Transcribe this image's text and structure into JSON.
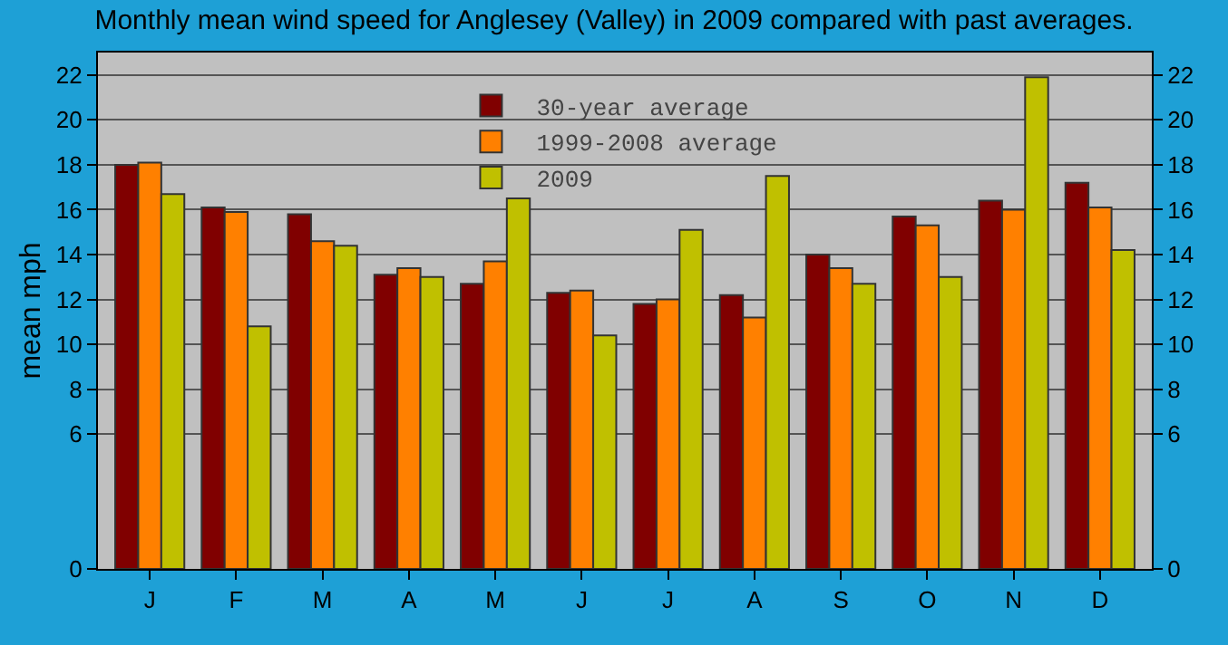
{
  "chart_data": {
    "type": "bar",
    "title": "Monthly mean wind speed for Anglesey (Valley) in 2009 compared with past averages.",
    "ylabel": "mean mph",
    "categories": [
      "J",
      "F",
      "M",
      "A",
      "M",
      "J",
      "J",
      "A",
      "S",
      "O",
      "N",
      "D"
    ],
    "series": [
      {
        "name": "30-year average",
        "color": "#800000",
        "values": [
          18.0,
          16.1,
          15.8,
          13.1,
          12.7,
          12.3,
          11.8,
          12.2,
          14.0,
          15.7,
          16.4,
          17.2
        ]
      },
      {
        "name": "1999-2008 average",
        "color": "#ff8000",
        "values": [
          18.1,
          15.9,
          14.6,
          13.4,
          13.7,
          12.4,
          12.0,
          11.2,
          13.4,
          15.3,
          16.0,
          16.1
        ]
      },
      {
        "name": "2009",
        "color": "#c0c000",
        "values": [
          16.7,
          10.8,
          14.4,
          13.0,
          16.5,
          10.4,
          15.1,
          17.5,
          12.7,
          13.0,
          21.9,
          14.2
        ]
      }
    ],
    "ylim": [
      0,
      23.0
    ],
    "yticks": [
      0,
      6,
      8,
      10,
      12,
      14,
      16,
      18,
      20,
      22
    ],
    "y2lim": [
      0,
      23.0
    ],
    "y2ticks": [
      0,
      6,
      8,
      10,
      12,
      14,
      16,
      18,
      20,
      22
    ],
    "grid": "y",
    "legend": "top"
  }
}
